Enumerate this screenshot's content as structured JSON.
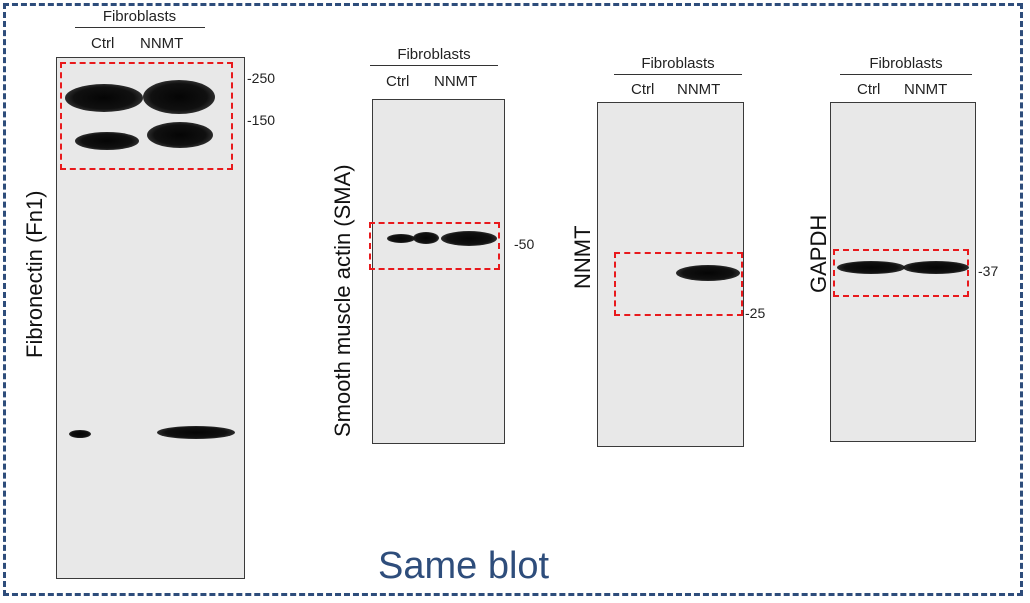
{
  "blots": [
    {
      "name": "Fibronectin (Fn1)",
      "group": "Fibroblasts",
      "lanes": [
        "Ctrl",
        "NNMT"
      ],
      "markers": [
        "-250",
        "-150"
      ]
    },
    {
      "name": "Smooth muscle actin (SMA)",
      "group": "Fibroblasts",
      "lanes": [
        "Ctrl",
        "NNMT"
      ],
      "markers": [
        "-50"
      ]
    },
    {
      "name": "NNMT",
      "group": "Fibroblasts",
      "lanes": [
        "Ctrl",
        "NNMT"
      ],
      "markers": [
        "-25"
      ]
    },
    {
      "name": "GAPDH",
      "group": "Fibroblasts",
      "lanes": [
        "Ctrl",
        "NNMT"
      ],
      "markers": [
        "-37"
      ]
    }
  ],
  "footer_text": "Same blot",
  "colors": {
    "frame": "#2e4d7b",
    "highlight_box": "#e8191c",
    "membrane": "#e8e8e8"
  }
}
